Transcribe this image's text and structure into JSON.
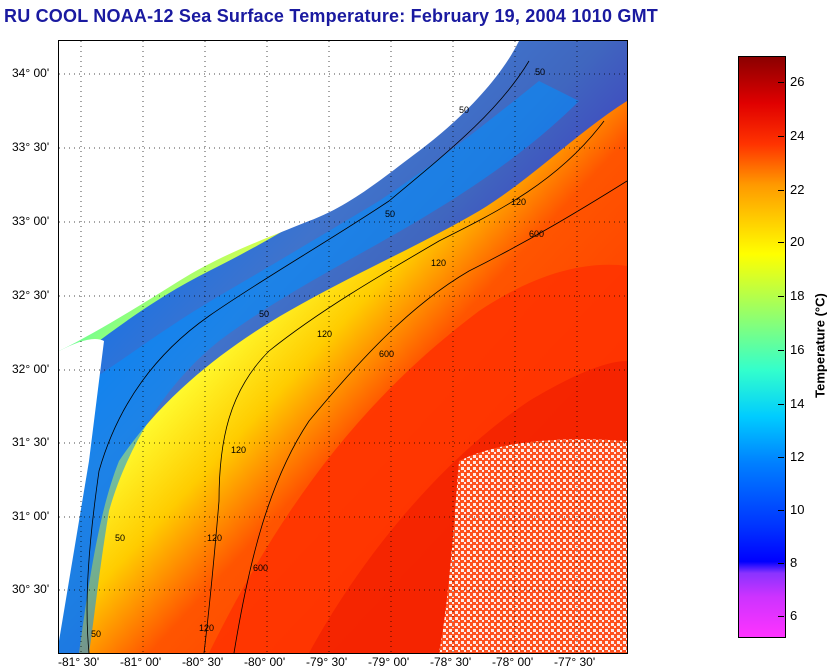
{
  "title": "RU COOL  NOAA-12  Sea Surface Temperature:  February 19, 2004 1010 GMT",
  "map": {
    "lat_labels": [
      "34° 00'",
      "33° 30'",
      "33° 00'",
      "32° 30'",
      "32° 00'",
      "31° 30'",
      "31° 00'",
      "30° 30'"
    ],
    "lon_labels": [
      "-81° 30'",
      "-81° 00'",
      "-80° 30'",
      "-80° 00'",
      "-79° 30'",
      "-79° 00'",
      "-78° 30'",
      "-78° 00'",
      "-77° 30'"
    ],
    "contour_labels": [
      "50",
      "50",
      "50",
      "50",
      "50",
      "50",
      "120",
      "120",
      "120",
      "120",
      "120",
      "120",
      "600",
      "600",
      "600"
    ]
  },
  "colorbar": {
    "ticks": [
      "26",
      "24",
      "22",
      "20",
      "18",
      "16",
      "14",
      "12",
      "10",
      "8",
      "6"
    ],
    "label": "Temperature (°C)",
    "colors": {
      "min": "#ff33ff",
      "cold": "#0000ff",
      "mid": "#ffff00",
      "warm": "#ff3300",
      "max": "#8b0000"
    }
  }
}
